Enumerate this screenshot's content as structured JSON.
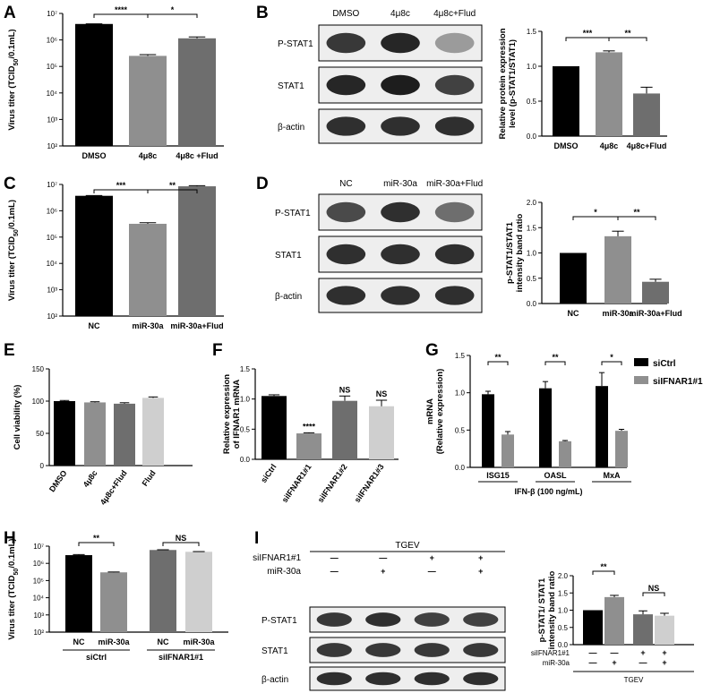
{
  "panels": [
    "A",
    "B",
    "C",
    "D",
    "E",
    "F",
    "G",
    "H",
    "I"
  ],
  "colors": {
    "black": "#000000",
    "dark_gray": "#6e6e6e",
    "mid_gray": "#8f8f8f",
    "light_gray": "#b9b9b9",
    "lighter_gray": "#cfcfcf"
  },
  "chart_data": [
    {
      "id": "A",
      "type": "bar",
      "ylabel": "Virus titer (TCID50/0.1mL)",
      "ylabel_main": "Virus titer (TCID",
      "ylabel_sub": "50",
      "ylabel_tail": "/0.1mL)",
      "yscale": "log",
      "ylim": [
        100,
        10000000
      ],
      "yticks": [
        "10²",
        "10³",
        "10⁴",
        "10⁵",
        "10⁶",
        "10⁷"
      ],
      "categories": [
        "DMSO",
        "4μ8c",
        "4μ8c +Flud"
      ],
      "values": [
        4000000,
        250000,
        1150000
      ],
      "errors": [
        60000,
        30000,
        150000
      ],
      "colors": [
        "#000000",
        "#8f8f8f",
        "#6e6e6e"
      ],
      "significance": [
        "****",
        "*"
      ]
    },
    {
      "id": "B",
      "type": "bar",
      "ylabel": "Relative  protein expression level (p-STAT1/STAT1)",
      "ylabel_lines": [
        "Relative  protein expression",
        "level (p-STAT1/STAT1)"
      ],
      "ylim": [
        0,
        1.5
      ],
      "yticks": [
        "0.0",
        "0.5",
        "1.0",
        "1.5"
      ],
      "categories": [
        "DMSO",
        "4μ8c",
        "4μ8c+Flud"
      ],
      "values": [
        1.0,
        1.2,
        0.61
      ],
      "errors": [
        0,
        0.02,
        0.09
      ],
      "colors": [
        "#000000",
        "#8f8f8f",
        "#6e6e6e"
      ],
      "significance": [
        "***",
        "**"
      ]
    },
    {
      "id": "C",
      "type": "bar",
      "ylabel": "Virus titer (TCID50/0.1mL)",
      "ylabel_main": "Virus titer (TCID",
      "ylabel_sub": "50",
      "ylabel_tail": "/0.1mL)",
      "yscale": "log",
      "ylim": [
        100,
        10000000
      ],
      "yticks": [
        "10²",
        "10³",
        "10⁴",
        "10⁵",
        "10⁶",
        "10⁷"
      ],
      "categories": [
        "NC",
        "miR-30a",
        "miR-30a+Flud"
      ],
      "values": [
        3700000,
        320000,
        8500000
      ],
      "errors": [
        100000,
        30000,
        500000
      ],
      "colors": [
        "#000000",
        "#8f8f8f",
        "#6e6e6e"
      ],
      "significance": [
        "***",
        "**"
      ]
    },
    {
      "id": "D",
      "type": "bar",
      "ylabel": "p-STAT1/STAT1 intensity band ratio",
      "ylabel_lines": [
        "p-STAT1/STAT1",
        "intensity band ratio"
      ],
      "ylim": [
        0,
        2.0
      ],
      "yticks": [
        "0.0",
        "0.5",
        "1.0",
        "1.5",
        "2.0"
      ],
      "categories": [
        "NC",
        "miR-30a",
        "miR-30a+Flud"
      ],
      "values": [
        1.0,
        1.33,
        0.43
      ],
      "errors": [
        0,
        0.1,
        0.05
      ],
      "colors": [
        "#000000",
        "#8f8f8f",
        "#6e6e6e"
      ],
      "significance": [
        "*",
        "**"
      ]
    },
    {
      "id": "E",
      "type": "bar",
      "ylabel": "Cell viability (%)",
      "ylim": [
        0,
        150
      ],
      "yticks": [
        "0",
        "50",
        "100",
        "150"
      ],
      "categories": [
        "DMSO",
        "4μ8c",
        "4μ8c+Flud",
        "Flud"
      ],
      "values": [
        100,
        98,
        96,
        105
      ],
      "errors": [
        1,
        1,
        1.5,
        1.5
      ],
      "colors": [
        "#000000",
        "#8f8f8f",
        "#6e6e6e",
        "#cfcfcf"
      ]
    },
    {
      "id": "F",
      "type": "bar",
      "ylabel": "Relative expression of IFNAR1 mRNA",
      "ylabel_lines": [
        "Relative expression",
        "of IFNAR1 mRNA"
      ],
      "ylim": [
        0,
        1.5
      ],
      "yticks": [
        "0.0",
        "0.5",
        "1.0",
        "1.5"
      ],
      "categories": [
        "siCtrl",
        "siIFNAR1#1",
        "siIFNAR1#2",
        "siIFNAR1#3"
      ],
      "values": [
        1.05,
        0.43,
        0.97,
        0.88
      ],
      "errors": [
        0.02,
        0.01,
        0.08,
        0.1
      ],
      "colors": [
        "#000000",
        "#8f8f8f",
        "#6e6e6e",
        "#cfcfcf"
      ],
      "significance": [
        "****",
        "NS",
        "NS"
      ]
    },
    {
      "id": "G",
      "type": "bar",
      "ylabel": "mRNA (Relative expression)",
      "ylabel_lines": [
        "mRNA",
        "(Relative expression)"
      ],
      "xlabel": "IFN-β (100 ng/mL)",
      "ylim": [
        0,
        1.5
      ],
      "yticks": [
        "0.0",
        "0.5",
        "1.0",
        "1.5"
      ],
      "categories": [
        "ISG15",
        "OASL",
        "MxA"
      ],
      "series": [
        {
          "name": "siCtrl",
          "color": "#000000",
          "values": [
            0.98,
            1.06,
            1.09
          ],
          "errors": [
            0.04,
            0.09,
            0.18
          ]
        },
        {
          "name": "siIFNAR1#1",
          "color": "#8f8f8f",
          "values": [
            0.44,
            0.35,
            0.49
          ],
          "errors": [
            0.04,
            0.01,
            0.02
          ]
        }
      ],
      "significance": [
        "**",
        "**",
        "*"
      ],
      "legend": "top-right"
    },
    {
      "id": "H",
      "type": "bar",
      "ylabel": "Virus titer (TCID50/0.1mL)",
      "ylabel_main": "Virus titer (TCID",
      "ylabel_sub": "50",
      "ylabel_tail": "/0.1mL)",
      "yscale": "log",
      "ylim": [
        100,
        10000000
      ],
      "yticks": [
        "10²",
        "10³",
        "10⁴",
        "10⁵",
        "10⁶",
        "10⁷"
      ],
      "categories": [
        "NC",
        "miR-30a",
        "NC",
        "miR-30a"
      ],
      "groups": [
        "siCtrl",
        "siIFNAR1#1"
      ],
      "values": [
        3000000,
        300000,
        6000000,
        4700000
      ],
      "errors": [
        250000,
        15000,
        200000,
        150000
      ],
      "colors": [
        "#000000",
        "#8f8f8f",
        "#6e6e6e",
        "#cfcfcf"
      ],
      "significance": [
        "**",
        "NS"
      ]
    },
    {
      "id": "I",
      "type": "bar",
      "ylabel": "p-STAT1/ STAT1 intensity band ratio",
      "ylabel_lines": [
        "p-STAT1/ STAT1",
        "intensity band ratio"
      ],
      "ylim": [
        0,
        2.0
      ],
      "yticks": [
        "0.0",
        "0.5",
        "1.0",
        "1.5",
        "2.0"
      ],
      "values": [
        1.0,
        1.38,
        0.88,
        0.84
      ],
      "errors": [
        0,
        0.05,
        0.1,
        0.07
      ],
      "colors": [
        "#000000",
        "#8f8f8f",
        "#6e6e6e",
        "#cfcfcf"
      ],
      "significance": [
        "**",
        "NS"
      ],
      "row_labels": [
        "siIFNAR1#1",
        "miR-30a"
      ],
      "row_signs": [
        [
          "—",
          "—",
          "+",
          "+"
        ],
        [
          "—",
          "+",
          "—",
          "+"
        ]
      ],
      "footer": "TGEV"
    }
  ],
  "blots": {
    "B": {
      "lanes": [
        "DMSO",
        "4μ8c",
        "4μ8c+Flud"
      ],
      "rows": [
        "P-STAT1",
        "STAT1",
        "β-actin"
      ],
      "intensity": [
        [
          0.8,
          0.9,
          0.25
        ],
        [
          0.9,
          0.95,
          0.75
        ],
        [
          0.85,
          0.85,
          0.85
        ]
      ]
    },
    "D": {
      "lanes": [
        "NC",
        "miR-30a",
        "miR-30a+Flud"
      ],
      "rows": [
        "P-STAT1",
        "STAT1",
        "β-actin"
      ],
      "intensity": [
        [
          0.7,
          0.85,
          0.5
        ],
        [
          0.85,
          0.85,
          0.85
        ],
        [
          0.85,
          0.85,
          0.85
        ]
      ]
    },
    "I": {
      "header": "TGEV",
      "treat_labels": [
        "siIFNAR1#1",
        "miR-30a"
      ],
      "treat_signs": [
        [
          "—",
          "—",
          "+",
          "+"
        ],
        [
          "—",
          "+",
          "—",
          "+"
        ]
      ],
      "rows": [
        "P-STAT1",
        "STAT1",
        "β-actin"
      ],
      "intensity": [
        [
          0.8,
          0.85,
          0.75,
          0.75
        ],
        [
          0.8,
          0.8,
          0.8,
          0.8
        ],
        [
          0.85,
          0.85,
          0.85,
          0.85
        ]
      ]
    }
  }
}
